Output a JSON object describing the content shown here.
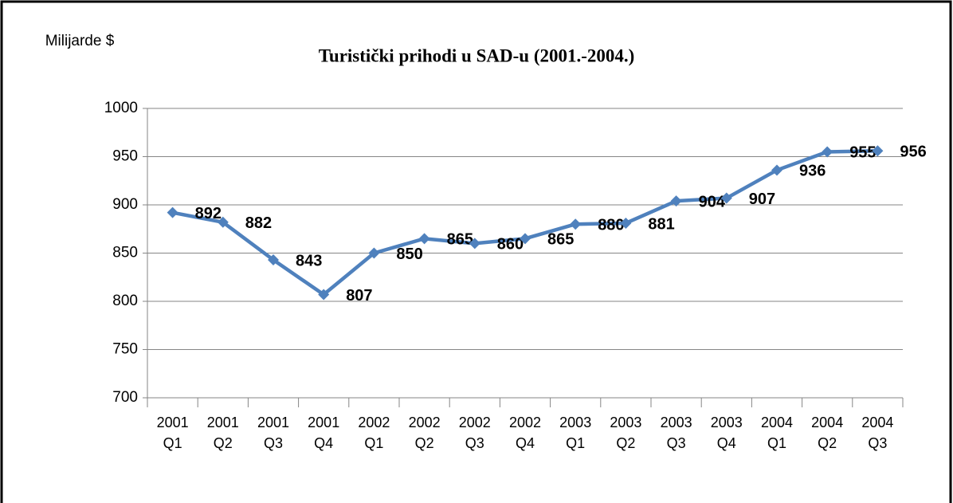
{
  "chart_data": {
    "type": "line",
    "title": "Turistički prihodi u SAD-u (2001.-2004.)",
    "y_axis_label": "Milijarde $",
    "categories": [
      "2001\nQ1",
      "2001\nQ2",
      "2001\nQ3",
      "2001\nQ4",
      "2002\nQ1",
      "2002\nQ2",
      "2002\nQ3",
      "2002\nQ4",
      "2003\nQ1",
      "2003\nQ2",
      "2003\nQ3",
      "2003\nQ4",
      "2004\nQ1",
      "2004\nQ2",
      "2004\nQ3"
    ],
    "series": [
      {
        "name": "Turistički prihodi",
        "color": "#4f81bd",
        "values": [
          892,
          882,
          843,
          807,
          850,
          865,
          860,
          865,
          880,
          881,
          904,
          907,
          936,
          955,
          956
        ]
      }
    ],
    "ylim": [
      700,
      1000
    ],
    "yticks": [
      700,
      750,
      800,
      850,
      900,
      950,
      1000
    ],
    "grid": true
  }
}
